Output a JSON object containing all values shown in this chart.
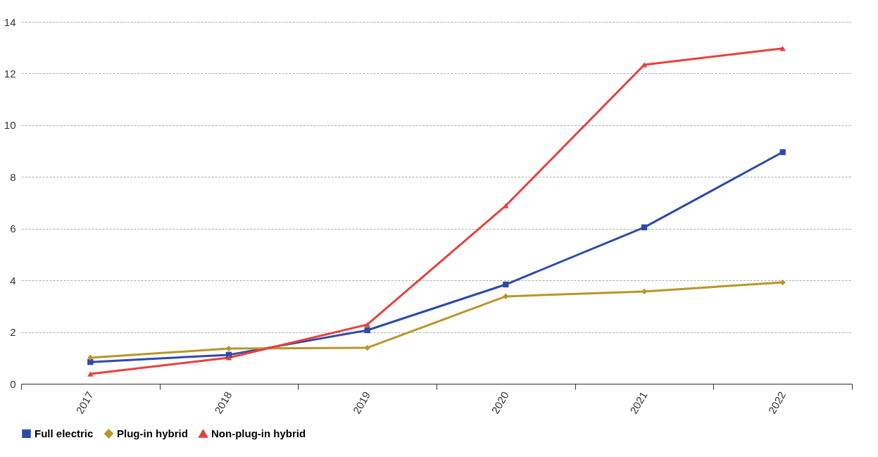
{
  "chart_data": {
    "type": "line",
    "categories": [
      "2017",
      "2018",
      "2019",
      "2020",
      "2021",
      "2022"
    ],
    "series": [
      {
        "name": "Full electric",
        "color": "#2e4aa8",
        "marker": "square",
        "values": [
          0.84,
          1.12,
          2.07,
          3.84,
          6.05,
          8.96
        ]
      },
      {
        "name": "Plug-in hybrid",
        "color": "#b8962a",
        "marker": "diamond",
        "values": [
          1.01,
          1.36,
          1.39,
          3.38,
          3.57,
          3.92
        ]
      },
      {
        "name": "Non-plug-in hybrid",
        "color": "#e8403e",
        "marker": "triangle",
        "values": [
          0.38,
          1.01,
          2.29,
          6.89,
          12.34,
          12.97
        ]
      }
    ],
    "ylim": [
      0,
      14
    ],
    "yticks": [
      0,
      2,
      4,
      6,
      8,
      10,
      12,
      14
    ],
    "grid": "y",
    "legend": "bottom",
    "line_style": "solid"
  }
}
